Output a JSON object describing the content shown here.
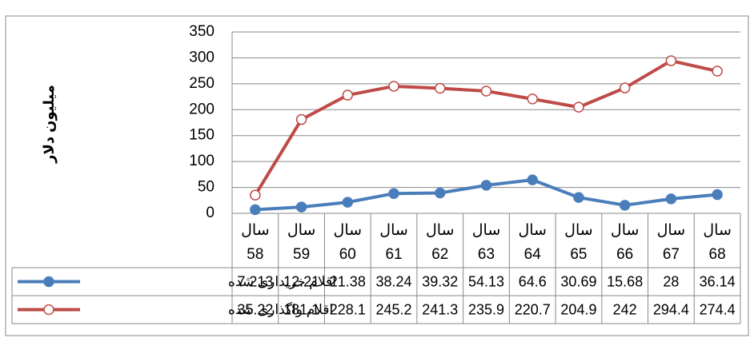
{
  "chart_data": {
    "type": "line",
    "y_label": "میلیون دلار",
    "categories": [
      "سال 58",
      "سال 59",
      "سال 60",
      "سال 61",
      "سال 62",
      "سال 63",
      "سال 64",
      "سال 65",
      "سال 66",
      "سال 67",
      "سال 68"
    ],
    "series": [
      {
        "name": "اقلام خریداری شده",
        "color": "#4a7ebb",
        "marker": "filled",
        "values": [
          7.213,
          12.21,
          21.38,
          38.24,
          39.32,
          54.13,
          64.6,
          30.69,
          15.68,
          28,
          36.14
        ]
      },
      {
        "name": "اقلام واگذاری شده",
        "color": "#be4b48",
        "marker": "open",
        "values": [
          35.22,
          181.1,
          228.1,
          245.2,
          241.3,
          235.9,
          220.7,
          204.9,
          242,
          294.4,
          274.4
        ]
      }
    ],
    "ylim": [
      0,
      350
    ],
    "yticks": [
      0,
      50,
      100,
      150,
      200,
      250,
      300,
      350
    ],
    "grid": true,
    "data_table": true
  }
}
